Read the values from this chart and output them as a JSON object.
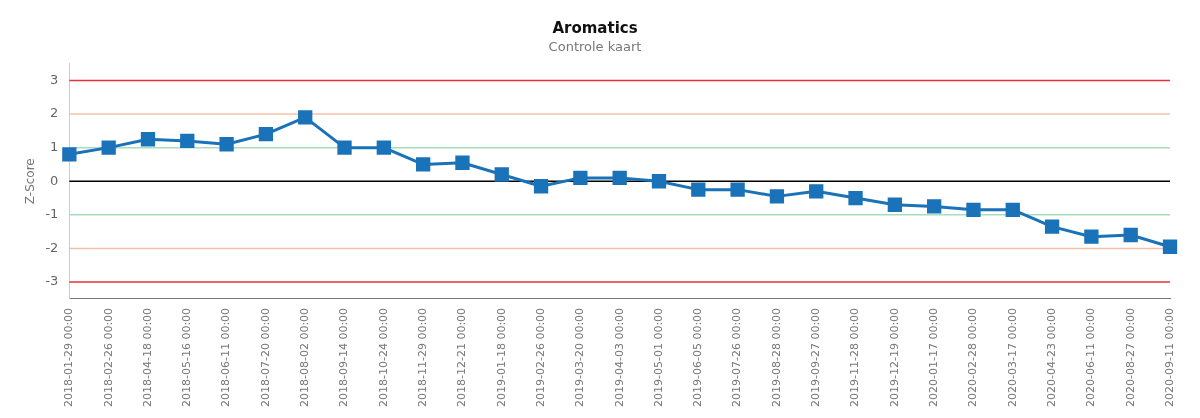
{
  "chart_data": {
    "type": "line",
    "title": "Aromatics",
    "subtitle": "Controle kaart",
    "ylabel": "Z-Score",
    "categories": [
      "2018-01-29 00:00",
      "2018-02-26 00:00",
      "2018-04-18 00:00",
      "2018-05-16 00:00",
      "2018-06-11 00:00",
      "2018-07-20 00:00",
      "2018-08-02 00:00",
      "2018-09-14 00:00",
      "2018-10-24 00:00",
      "2018-11-29 00:00",
      "2018-12-21 00:00",
      "2019-01-18 00:00",
      "2019-02-26 00:00",
      "2019-03-20 00:00",
      "2019-04-03 00:00",
      "2019-05-01 00:00",
      "2019-06-05 00:00",
      "2019-07-26 00:00",
      "2019-08-28 00:00",
      "2019-09-27 00:00",
      "2019-11-28 00:00",
      "2019-12-19 00:00",
      "2020-01-17 00:00",
      "2020-02-28 00:00",
      "2020-03-17 00:00",
      "2020-04-23 00:00",
      "2020-06-11 00:00",
      "2020-08-27 00:00",
      "2020-09-11 00:00"
    ],
    "series": [
      {
        "color": "#1a72b8",
        "values": [
          0.8,
          1.0,
          1.25,
          1.2,
          1.1,
          1.4,
          1.9,
          1.0,
          1.0,
          0.5,
          0.55,
          0.2,
          -0.15,
          0.1,
          0.1,
          0.0,
          -0.25,
          -0.25,
          -0.45,
          -0.3,
          -0.5,
          -0.7,
          -0.75,
          -0.85,
          -0.85,
          -1.35,
          -1.65,
          -1.6,
          -1.95
        ]
      }
    ],
    "ylim": [
      -3.5,
      3.5
    ],
    "yticks": [
      -3,
      -2,
      -1,
      0,
      1,
      2,
      3
    ],
    "grid": false,
    "legend": false,
    "marker": "square",
    "line_style": "solid",
    "ref_lines": [
      {
        "axis": "y",
        "value": 3,
        "color": "#e8303a"
      },
      {
        "axis": "y",
        "value": -3,
        "color": "#e8303a"
      },
      {
        "axis": "y",
        "value": 2,
        "color": "#f5c0a8"
      },
      {
        "axis": "y",
        "value": -2,
        "color": "#f5c0a8"
      },
      {
        "axis": "y",
        "value": 1,
        "color": "#a8dcc0"
      },
      {
        "axis": "y",
        "value": -1,
        "color": "#a8dcc0"
      },
      {
        "axis": "y",
        "value": 0,
        "color": "#000000"
      }
    ]
  }
}
